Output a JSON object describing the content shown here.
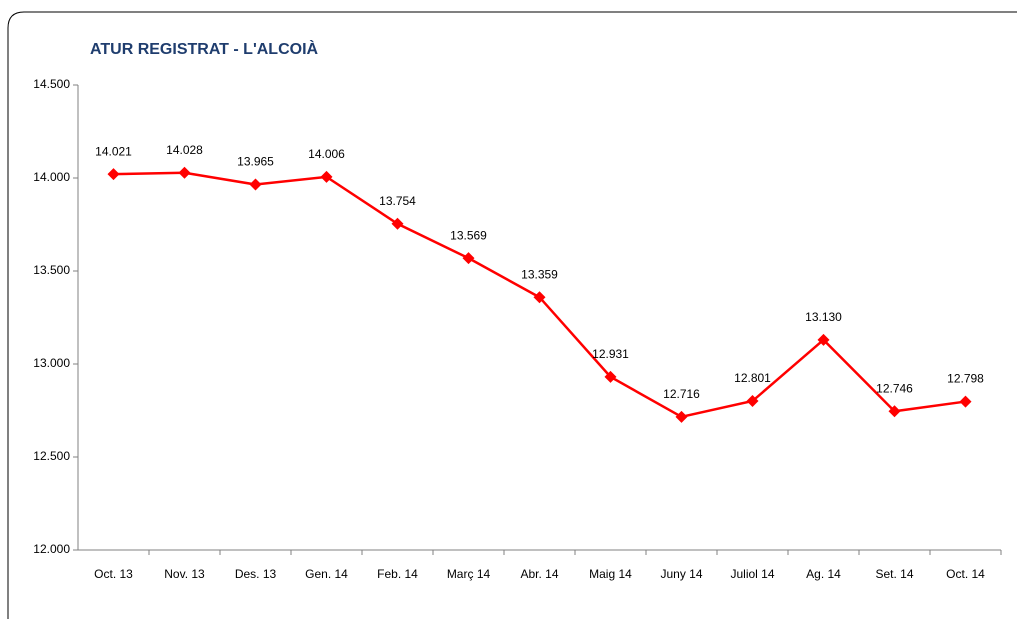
{
  "chart_data": {
    "type": "line",
    "title": "ATUR REGISTRAT - L'ALCOIÀ",
    "categories": [
      "Oct. 13",
      "Nov. 13",
      "Des. 13",
      "Gen. 14",
      "Feb. 14",
      "Març 14",
      "Abr. 14",
      "Maig 14",
      "Juny 14",
      "Juliol 14",
      "Ag. 14",
      "Set. 14",
      "Oct. 14"
    ],
    "values": [
      14021,
      14028,
      13965,
      14006,
      13754,
      13569,
      13359,
      12931,
      12716,
      12801,
      13130,
      12746,
      12798
    ],
    "value_labels": [
      "14.021",
      "14.028",
      "13.965",
      "14.006",
      "13.754",
      "13.569",
      "13.359",
      "12.931",
      "12.716",
      "12.801",
      "13.130",
      "12.746",
      "12.798"
    ],
    "color": "#ff0000",
    "ylim": [
      12000,
      14500
    ],
    "yticks": [
      {
        "value": 12000,
        "label": "12.000"
      },
      {
        "value": 12500,
        "label": "12.500"
      },
      {
        "value": 13000,
        "label": "13.000"
      },
      {
        "value": 13500,
        "label": "13.500"
      },
      {
        "value": 14000,
        "label": "14.000"
      },
      {
        "value": 14500,
        "label": "14.500"
      }
    ],
    "grid": false
  }
}
